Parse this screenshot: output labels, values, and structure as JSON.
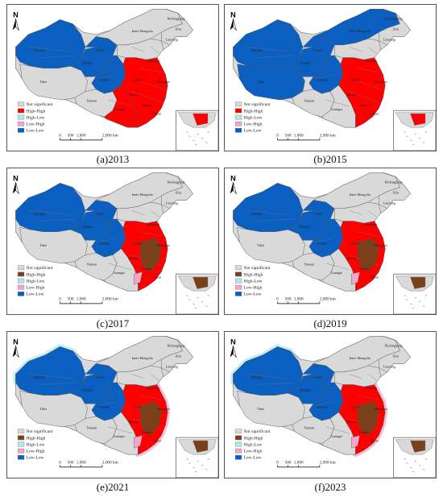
{
  "north_label": "N",
  "legend_items": [
    "Not significant",
    "High-High",
    "High-Low",
    "Low-High",
    "Low-Low"
  ],
  "scale_labels": [
    "0",
    "500",
    "1,000",
    "2,000 km"
  ],
  "province_labels": [
    "Xinjiang",
    "Tibet",
    "Qinghai",
    "Gansu",
    "Sichuan",
    "Inner Mongolia",
    "Heilongjiang",
    "Jilin",
    "Liaoning",
    "Yunnan",
    "Guangxi",
    "Hubei",
    "Hunan",
    "Shanghai",
    "Jiangxi",
    "Shandong",
    "Fujian"
  ],
  "colors": {
    "not_significant": "#d9d9d9",
    "high_high_early": "#ff0000",
    "high_high_late": "#7b3f1a",
    "high_low": "#aee8f0",
    "low_high": "#f2a6c8",
    "low_low": "#0a5fc0"
  },
  "panels": [
    {
      "caption": "(a)2013",
      "hh_color": "#ff0000"
    },
    {
      "caption": "(b)2015",
      "hh_color": "#ff0000"
    },
    {
      "caption": "(c)2017",
      "hh_color": "#7b3f1a"
    },
    {
      "caption": "(d)2019",
      "hh_color": "#7b3f1a"
    },
    {
      "caption": "(e)2021",
      "hh_color": "#7b3f1a"
    },
    {
      "caption": "(f)2023",
      "hh_color": "#7b3f1a"
    }
  ]
}
